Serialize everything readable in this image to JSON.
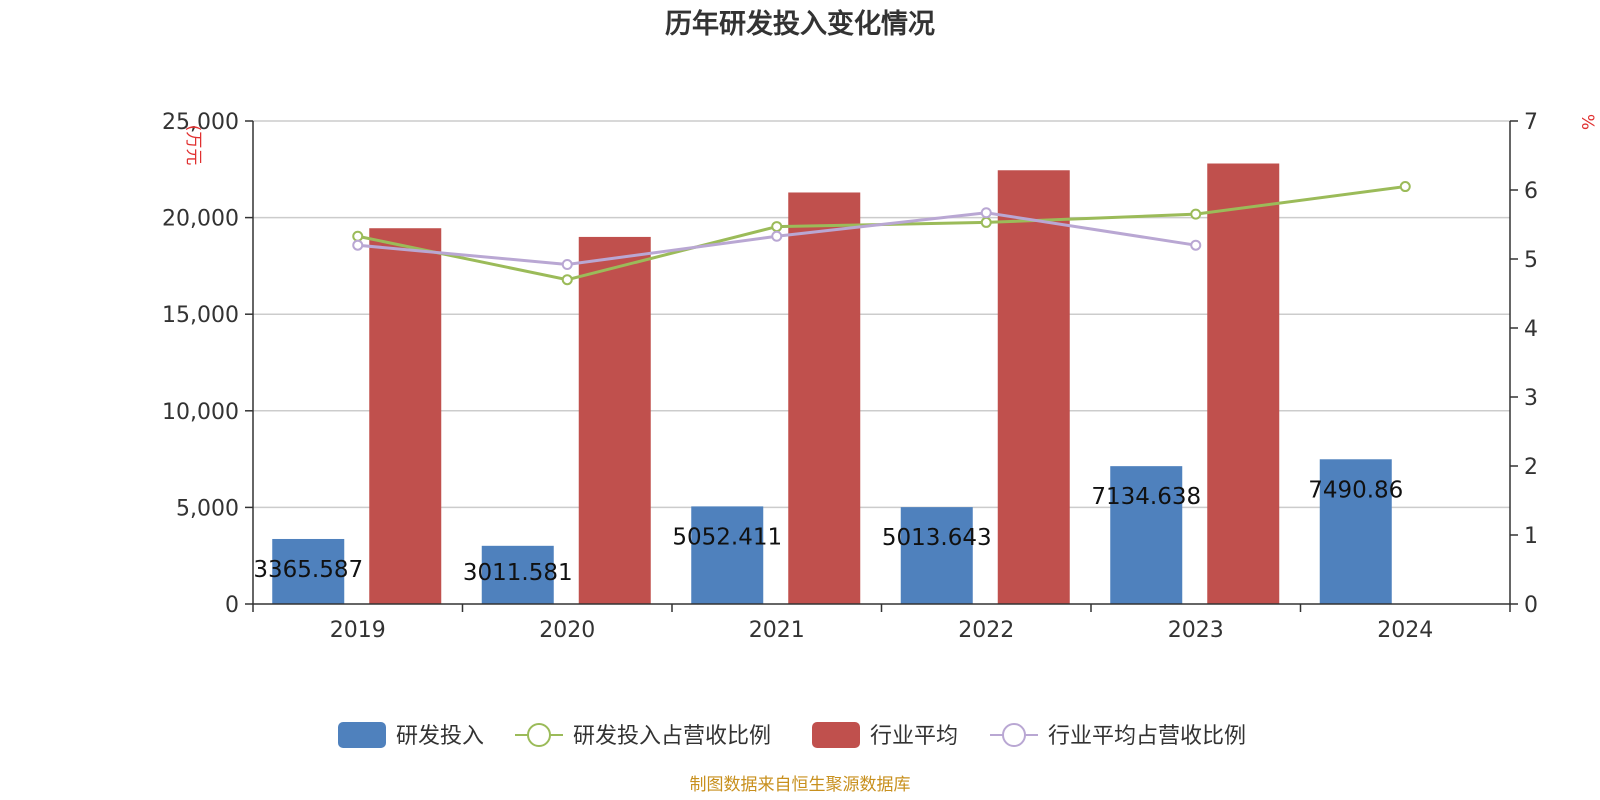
{
  "chart_data": {
    "type": "bar",
    "title": "历年研发投入变化情况",
    "categories": [
      "2019",
      "2020",
      "2021",
      "2022",
      "2023",
      "2024"
    ],
    "y_left": {
      "unit": "(万元",
      "ylim": [
        0,
        25000
      ],
      "ticks": [
        "0",
        "5,000",
        "10,000",
        "15,000",
        "20,000",
        "25,000"
      ]
    },
    "y_right": {
      "unit": "%",
      "ylim": [
        0,
        7
      ],
      "ticks": [
        "0",
        "1",
        "2",
        "3",
        "4",
        "5",
        "6",
        "7"
      ]
    },
    "series": [
      {
        "name": "研发投入",
        "kind": "bar",
        "axis": "left",
        "color": "#4f81bd",
        "values": [
          3365.587,
          3011.581,
          5052.411,
          5013.643,
          7134.638,
          7490.86
        ],
        "labels": [
          "3365.587",
          "3011.581",
          "5052.411",
          "5013.643",
          "7134.638",
          "7490.86"
        ]
      },
      {
        "name": "研发投入占营收比例",
        "kind": "line",
        "axis": "right",
        "color": "#9bbb59",
        "values": [
          5.33,
          4.7,
          5.47,
          5.53,
          5.65,
          6.05
        ]
      },
      {
        "name": "行业平均",
        "kind": "bar",
        "axis": "left",
        "color": "#c0504d",
        "values": [
          19450,
          19000,
          21300,
          22450,
          22800,
          null
        ]
      },
      {
        "name": "行业平均占营收比例",
        "kind": "line",
        "axis": "right",
        "color": "#b9a7d3",
        "values": [
          5.2,
          4.92,
          5.33,
          5.67,
          5.2,
          null
        ]
      }
    ],
    "grid": true,
    "legend_position": "bottom"
  },
  "source_note": "制图数据来自恒生聚源数据库",
  "colors": {
    "axis": "#333333",
    "grid": "#cccccc",
    "unit": "#e03030",
    "source": "#c8901e"
  }
}
